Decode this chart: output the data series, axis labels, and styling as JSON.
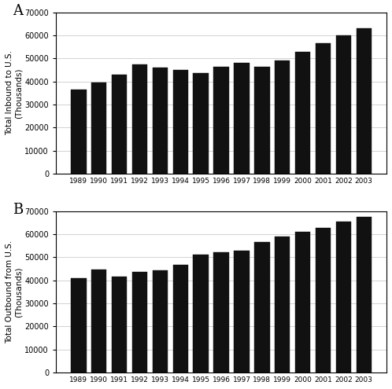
{
  "years": [
    1989,
    1990,
    1991,
    1992,
    1993,
    1994,
    1995,
    1996,
    1997,
    1998,
    1999,
    2000,
    2001,
    2002,
    2003
  ],
  "inbound": [
    36500,
    39500,
    43000,
    47500,
    46000,
    45000,
    43500,
    46500,
    48000,
    46500,
    49000,
    52800,
    56500,
    60000,
    63000
  ],
  "outbound": [
    41000,
    44800,
    41500,
    43800,
    44500,
    46800,
    51000,
    52200,
    53000,
    56500,
    59000,
    61000,
    62800,
    65500,
    67500
  ],
  "ylabel_A": "Total Inbound to U.S.\n(Thousands)",
  "ylabel_B": "Total Outbound from U.S.\n(Thousands)",
  "label_A": "A",
  "label_B": "B",
  "bar_color": "#111111",
  "ylim": [
    0,
    70000
  ],
  "yticks": [
    0,
    10000,
    20000,
    30000,
    40000,
    50000,
    60000,
    70000
  ],
  "bg_color": "#ffffff",
  "grid_color": "#c0c0c0"
}
